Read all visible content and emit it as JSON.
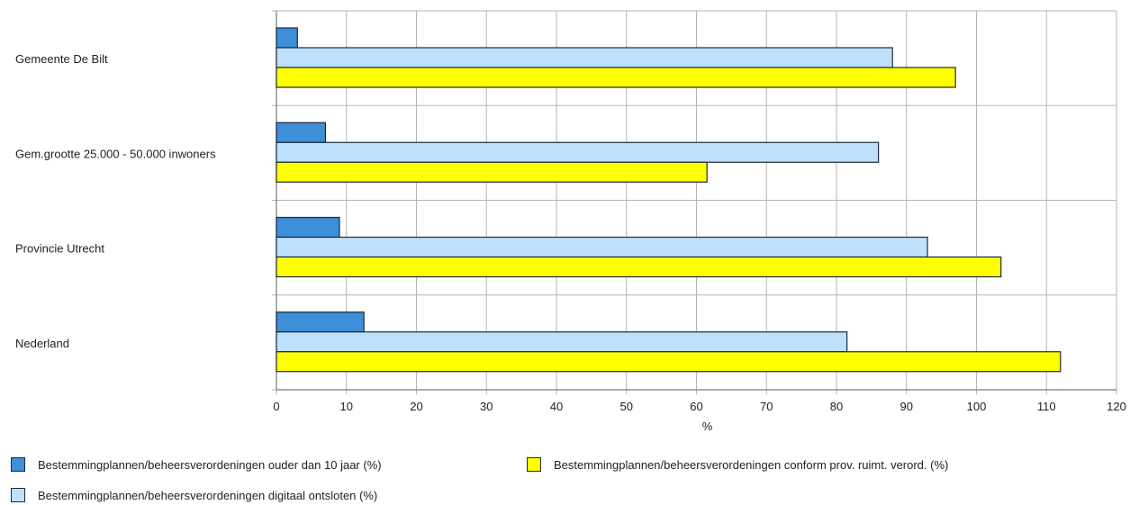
{
  "chart_data": {
    "type": "bar",
    "orientation": "horizontal",
    "categories": [
      "Gemeente De Bilt",
      "Gem.grootte 25.000 - 50.000 inwoners",
      "Provincie Utrecht",
      "Nederland"
    ],
    "series": [
      {
        "name": "Bestemmingplannen/beheersverordeningen ouder dan 10 jaar (%)",
        "color": "#3d8fd8",
        "values": [
          3,
          7,
          9,
          12.5
        ]
      },
      {
        "name": "Bestemmingplannen/beheersverordeningen digitaal ontsloten (%)",
        "color": "#bfe0fb",
        "values": [
          88,
          86,
          93,
          81.5
        ]
      },
      {
        "name": "Bestemmingplannen/beheersverordeningen conform prov. ruimt. verord. (%)",
        "color": "#ffff00",
        "values": [
          97,
          61.5,
          103.5,
          112
        ]
      }
    ],
    "xlabel": "%",
    "xlim": [
      0,
      120
    ],
    "xticks": [
      "0",
      "10",
      "20",
      "30",
      "40",
      "50",
      "60",
      "70",
      "80",
      "90",
      "100",
      "110",
      "120"
    ],
    "grid": true,
    "legend_position": "bottom"
  }
}
